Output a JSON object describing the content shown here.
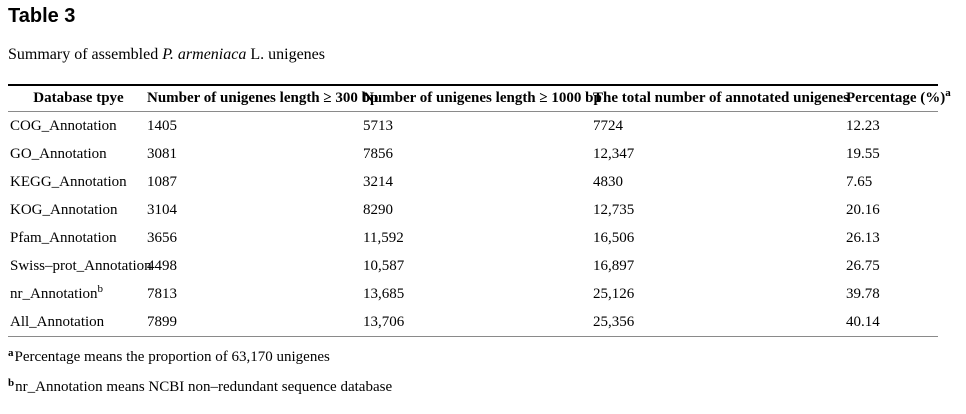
{
  "page": {
    "background_color": "#ffffff",
    "text_color": "#000000",
    "rule_top_color": "#000000",
    "rule_gray_color": "#8a8a8a"
  },
  "title": "Table 3",
  "caption": {
    "prefix": "Summary of assembled ",
    "species_italic": "P. armeniaca",
    "suffix": " L. unigenes"
  },
  "table": {
    "columns": [
      {
        "label": "Database tpye",
        "sup": ""
      },
      {
        "label": "Number of unigenes length ≥ 300 bp",
        "sup": ""
      },
      {
        "label": "Number of unigenes length ≥ 1000 bp",
        "sup": ""
      },
      {
        "label": "The total number of annotated unigenes",
        "sup": ""
      },
      {
        "label": "Percentage (%)",
        "sup": "a"
      }
    ],
    "rows": [
      {
        "label": "COG_Annotation",
        "label_sup": "",
        "values": [
          "1405",
          "5713",
          "7724",
          "12.23"
        ]
      },
      {
        "label": "GO_Annotation",
        "label_sup": "",
        "values": [
          "3081",
          "7856",
          "12,347",
          "19.55"
        ]
      },
      {
        "label": "KEGG_Annotation",
        "label_sup": "",
        "values": [
          "1087",
          "3214",
          "4830",
          "7.65"
        ]
      },
      {
        "label": "KOG_Annotation",
        "label_sup": "",
        "values": [
          "3104",
          "8290",
          "12,735",
          "20.16"
        ]
      },
      {
        "label": "Pfam_Annotation",
        "label_sup": "",
        "values": [
          "3656",
          "11,592",
          "16,506",
          "26.13"
        ]
      },
      {
        "label": "Swiss–prot_Annotation",
        "label_sup": "",
        "values": [
          "4498",
          "10,587",
          "16,897",
          "26.75"
        ]
      },
      {
        "label": "nr_Annotation",
        "label_sup": "b",
        "values": [
          "7813",
          "13,685",
          "25,126",
          "39.78"
        ]
      },
      {
        "label": "All_Annotation",
        "label_sup": "",
        "values": [
          "7899",
          "13,706",
          "25,356",
          "40.14"
        ]
      }
    ]
  },
  "footnotes": [
    {
      "marker": "a",
      "text": "Percentage means the proportion of 63,170 unigenes"
    },
    {
      "marker": "b",
      "text": "nr_Annotation means NCBI non–redundant sequence database"
    }
  ]
}
